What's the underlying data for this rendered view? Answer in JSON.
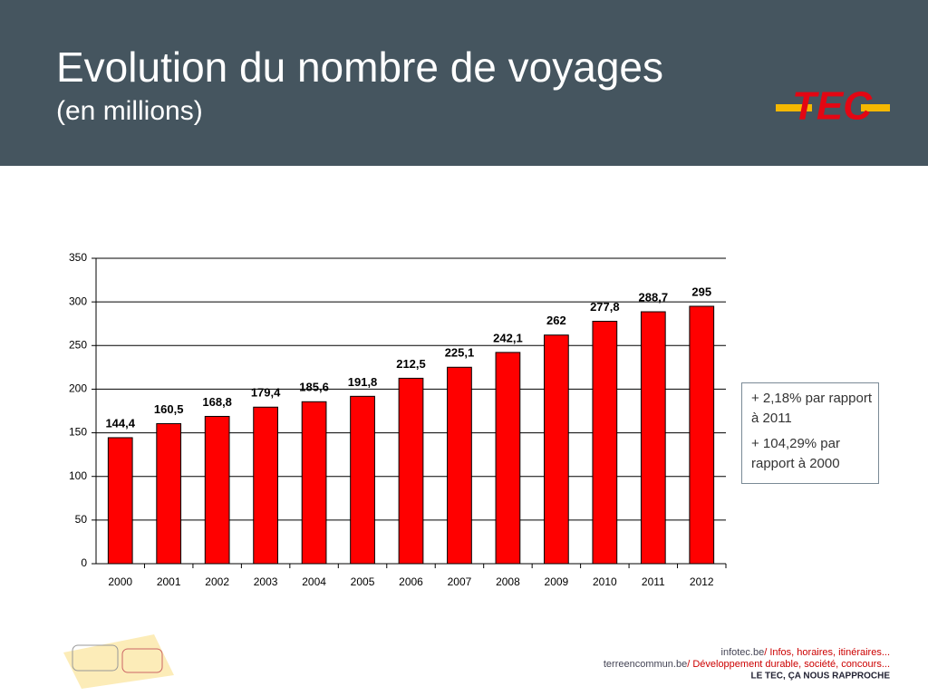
{
  "chart_data": {
    "type": "bar",
    "title": "Evolution du nombre de voyages",
    "subtitle": "(en millions)",
    "categories": [
      "2000",
      "2001",
      "2002",
      "2003",
      "2004",
      "2005",
      "2006",
      "2007",
      "2008",
      "2009",
      "2010",
      "2011",
      "2012"
    ],
    "values": [
      144.4,
      160.5,
      168.8,
      179.4,
      185.6,
      191.8,
      212.5,
      225.1,
      242.1,
      262,
      277.8,
      288.7,
      295
    ],
    "value_labels": [
      "144,4",
      "160,5",
      "168,8",
      "179,4",
      "185,6",
      "191,8",
      "212,5",
      "225,1",
      "242,1",
      "262",
      "277,8",
      "288,7",
      "295"
    ],
    "color": "#ff0000",
    "ylim": [
      0,
      350
    ],
    "yticks": [
      0,
      50,
      100,
      150,
      200,
      250,
      300,
      350
    ],
    "grid": true,
    "annotations": [
      "+ 2,18% par rapport à 2011",
      "+ 104,29% par rapport à 2000"
    ]
  },
  "logo": "TEC",
  "footer": {
    "lines": [
      {
        "site": "infotec.be",
        "text": "/ Infos, horaires, itinéraires..."
      },
      {
        "site": "terreencommun.be",
        "text": "/ Développement durable, société, concours..."
      }
    ],
    "slogan": "LE TEC, ÇA NOUS RAPPROCHE"
  }
}
